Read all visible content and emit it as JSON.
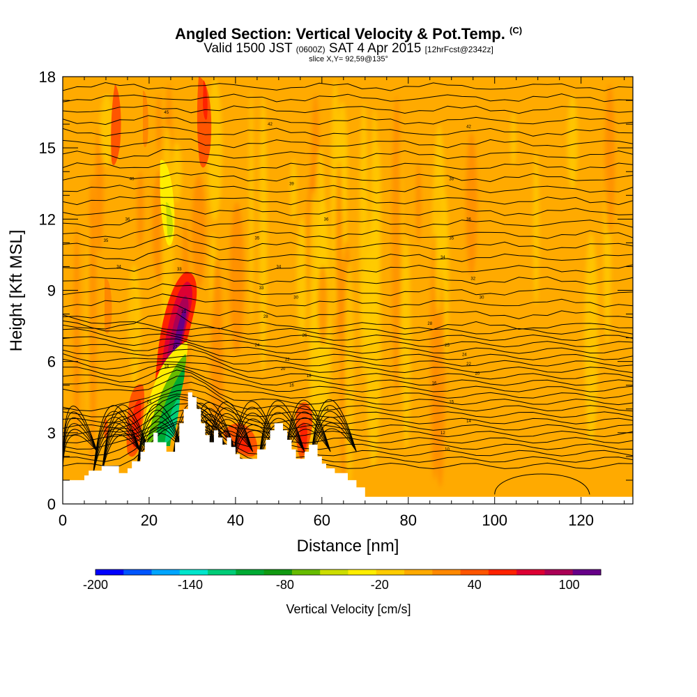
{
  "header": {
    "title": "Angled Section: Vertical Velocity & Pot.Temp.",
    "copyright": "(C)",
    "valid_main": "Valid 1500 JST",
    "valid_utc": "(0600Z)",
    "valid_date": "SAT 4 Apr 2015",
    "forecast": "[12hrFcst@2342z]",
    "slice": "slice X,Y= 92,59@135°"
  },
  "chart_data": {
    "type": "heatmap",
    "xlabel": "Distance [nm]",
    "ylabel": "Height [Kft MSL]",
    "xlim": [
      0,
      132
    ],
    "ylim": [
      0,
      18
    ],
    "x_ticks": [
      0,
      20,
      40,
      60,
      80,
      100,
      120
    ],
    "y_ticks": [
      0,
      3,
      6,
      9,
      12,
      15,
      18
    ],
    "colorbar": {
      "label": "Vertical Velocity [cm/s]",
      "range": [
        -200,
        120
      ],
      "tick_labels": [
        "-200",
        "-140",
        "-80",
        "-20",
        "40",
        "100"
      ],
      "tick_values": [
        -200,
        -140,
        -80,
        -20,
        40,
        100
      ],
      "colors": [
        "#0000ff",
        "#0055ff",
        "#00a5ff",
        "#00e5cc",
        "#00cc77",
        "#00aa33",
        "#119911",
        "#66bb00",
        "#ccdd00",
        "#ffee00",
        "#ffcc00",
        "#ffaa00",
        "#ff8800",
        "#ff5500",
        "#ff2200",
        "#dd0033",
        "#aa0055",
        "#660088"
      ]
    },
    "terrain_kft": [
      [
        0,
        1.0
      ],
      [
        5,
        1.0
      ],
      [
        5,
        1.2
      ],
      [
        6,
        1.2
      ],
      [
        6,
        1.4
      ],
      [
        9,
        1.4
      ],
      [
        9,
        1.6
      ],
      [
        13,
        1.6
      ],
      [
        13,
        1.3
      ],
      [
        15,
        1.3
      ],
      [
        15,
        1.5
      ],
      [
        16,
        1.5
      ],
      [
        16,
        1.8
      ],
      [
        18,
        1.8
      ],
      [
        18,
        2.2
      ],
      [
        19,
        2.2
      ],
      [
        19,
        2.6
      ],
      [
        21,
        2.6
      ],
      [
        21,
        3.0
      ],
      [
        22,
        3.0
      ],
      [
        22,
        2.6
      ],
      [
        24,
        2.6
      ],
      [
        24,
        2.2
      ],
      [
        26,
        2.2
      ],
      [
        26,
        2.6
      ],
      [
        27,
        2.6
      ],
      [
        27,
        3.4
      ],
      [
        28,
        3.4
      ],
      [
        28,
        4.0
      ],
      [
        29,
        4.0
      ],
      [
        29,
        4.7
      ],
      [
        30,
        4.7
      ],
      [
        30,
        4.5
      ],
      [
        31,
        4.5
      ],
      [
        31,
        4.0
      ],
      [
        32,
        4.0
      ],
      [
        32,
        3.4
      ],
      [
        33,
        3.4
      ],
      [
        33,
        2.9
      ],
      [
        34,
        2.9
      ],
      [
        34,
        2.6
      ],
      [
        35,
        2.6
      ],
      [
        35,
        3.1
      ],
      [
        36,
        3.1
      ],
      [
        36,
        2.8
      ],
      [
        37,
        2.8
      ],
      [
        37,
        2.5
      ],
      [
        38,
        2.5
      ],
      [
        38,
        2.8
      ],
      [
        39,
        2.8
      ],
      [
        39,
        2.4
      ],
      [
        40,
        2.4
      ],
      [
        40,
        2.1
      ],
      [
        41,
        2.1
      ],
      [
        41,
        1.9
      ],
      [
        45,
        1.9
      ],
      [
        45,
        2.3
      ],
      [
        47,
        2.3
      ],
      [
        47,
        2.7
      ],
      [
        48,
        2.7
      ],
      [
        48,
        3.1
      ],
      [
        49,
        3.1
      ],
      [
        49,
        3.4
      ],
      [
        51,
        3.4
      ],
      [
        51,
        3.1
      ],
      [
        52,
        3.1
      ],
      [
        52,
        2.7
      ],
      [
        53,
        2.7
      ],
      [
        53,
        2.3
      ],
      [
        54,
        2.3
      ],
      [
        54,
        1.9
      ],
      [
        56,
        1.9
      ],
      [
        56,
        2.2
      ],
      [
        57,
        2.2
      ],
      [
        57,
        2.5
      ],
      [
        59,
        2.5
      ],
      [
        59,
        2.0
      ],
      [
        60,
        2.0
      ],
      [
        60,
        1.7
      ],
      [
        61,
        1.7
      ],
      [
        61,
        1.5
      ],
      [
        63,
        1.5
      ],
      [
        63,
        1.3
      ],
      [
        66,
        1.3
      ],
      [
        66,
        1.0
      ],
      [
        68,
        1.0
      ],
      [
        68,
        0.7
      ],
      [
        70,
        0.7
      ],
      [
        70,
        0.3
      ],
      [
        132,
        0.3
      ]
    ],
    "theta_labels": [
      {
        "x": 24,
        "y": 16.5,
        "t": "45"
      },
      {
        "x": 48,
        "y": 16.0,
        "t": "42"
      },
      {
        "x": 94,
        "y": 15.9,
        "t": "42"
      },
      {
        "x": 16,
        "y": 13.7,
        "t": "40"
      },
      {
        "x": 53,
        "y": 13.5,
        "t": "39"
      },
      {
        "x": 90,
        "y": 13.7,
        "t": "38"
      },
      {
        "x": 15,
        "y": 12.0,
        "t": "36"
      },
      {
        "x": 61,
        "y": 12.0,
        "t": "36"
      },
      {
        "x": 94,
        "y": 12.0,
        "t": "36"
      },
      {
        "x": 10,
        "y": 11.1,
        "t": "35"
      },
      {
        "x": 45,
        "y": 11.2,
        "t": "35"
      },
      {
        "x": 90,
        "y": 11.2,
        "t": "35"
      },
      {
        "x": 13,
        "y": 10.0,
        "t": "34"
      },
      {
        "x": 50,
        "y": 10.0,
        "t": "34"
      },
      {
        "x": 88,
        "y": 10.4,
        "t": "34"
      },
      {
        "x": 27,
        "y": 9.9,
        "t": "33"
      },
      {
        "x": 46,
        "y": 9.1,
        "t": "33"
      },
      {
        "x": 95,
        "y": 9.5,
        "t": "32"
      },
      {
        "x": 54,
        "y": 8.7,
        "t": "30"
      },
      {
        "x": 97,
        "y": 8.7,
        "t": "30"
      },
      {
        "x": 47,
        "y": 7.9,
        "t": "28"
      },
      {
        "x": 28,
        "y": 8.1,
        "t": "31"
      },
      {
        "x": 85,
        "y": 7.6,
        "t": "28"
      },
      {
        "x": 56,
        "y": 7.1,
        "t": "26"
      },
      {
        "x": 89,
        "y": 6.7,
        "t": "25"
      },
      {
        "x": 45,
        "y": 6.7,
        "t": "24"
      },
      {
        "x": 93,
        "y": 6.3,
        "t": "24"
      },
      {
        "x": 26,
        "y": 6.6,
        "t": "27"
      },
      {
        "x": 52,
        "y": 6.1,
        "t": "22"
      },
      {
        "x": 94,
        "y": 5.9,
        "t": "22"
      },
      {
        "x": 51,
        "y": 5.7,
        "t": "20"
      },
      {
        "x": 96,
        "y": 5.5,
        "t": "20"
      },
      {
        "x": 57,
        "y": 5.4,
        "t": "18"
      },
      {
        "x": 24,
        "y": 5.8,
        "t": "18"
      },
      {
        "x": 86,
        "y": 5.1,
        "t": "16"
      },
      {
        "x": 53,
        "y": 5.0,
        "t": "16"
      },
      {
        "x": 90,
        "y": 4.3,
        "t": "15"
      },
      {
        "x": 61,
        "y": 4.0,
        "t": "14"
      },
      {
        "x": 94,
        "y": 3.5,
        "t": "14"
      },
      {
        "x": 20,
        "y": 4.3,
        "t": "24"
      },
      {
        "x": 88,
        "y": 3.0,
        "t": "12"
      },
      {
        "x": 89,
        "y": 2.3,
        "t": "10"
      }
    ]
  }
}
